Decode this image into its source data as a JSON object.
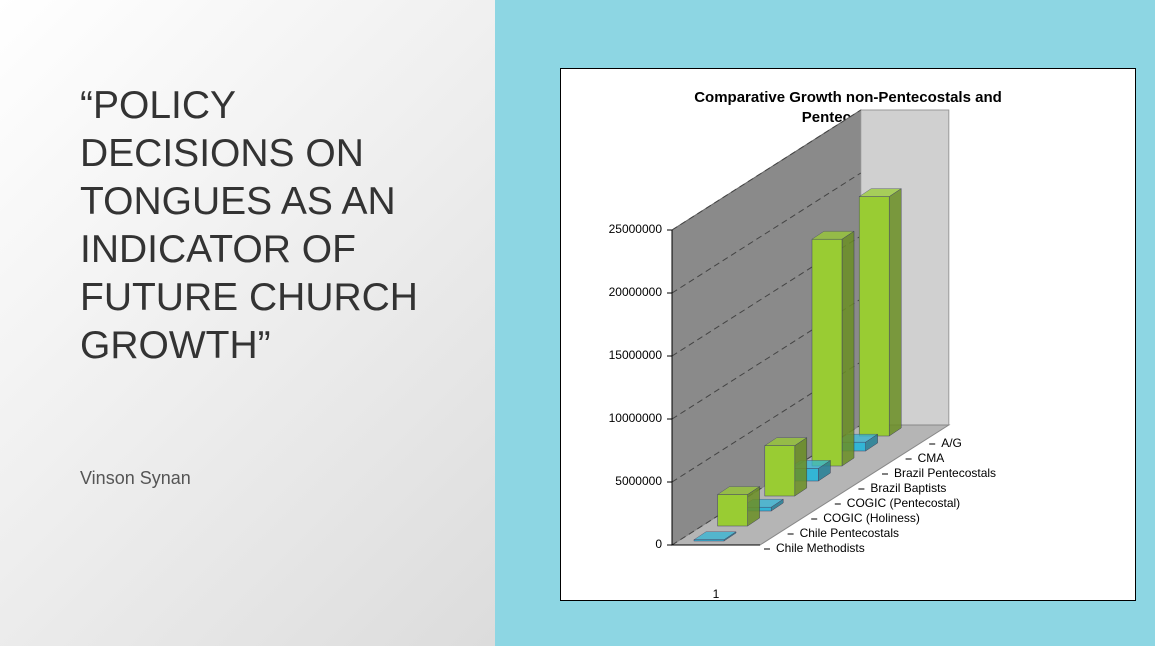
{
  "slide": {
    "title": "“POLICY DECISIONS ON TONGUES AS AN INDICATOR OF FUTURE CHURCH GROWTH”",
    "subtitle": "Vinson Synan"
  },
  "chart_data": {
    "type": "bar3d",
    "title": "Comparative Growth non-Pentecostals and Pentecostals",
    "categories": [
      "1"
    ],
    "series": [
      {
        "name": "Chile Methodists",
        "color": "#33b5d6",
        "values": [
          100000
        ]
      },
      {
        "name": "Chile Pentecostals",
        "color": "#99cc33",
        "values": [
          2500000
        ]
      },
      {
        "name": "COGIC (Holiness)",
        "color": "#33b5d6",
        "values": [
          300000
        ]
      },
      {
        "name": "COGIC (Pentecostal)",
        "color": "#99cc33",
        "values": [
          4000000
        ]
      },
      {
        "name": "Brazil Baptists",
        "color": "#33b5d6",
        "values": [
          1000000
        ]
      },
      {
        "name": "Brazil Pentecostals",
        "color": "#99cc33",
        "values": [
          18000000
        ]
      },
      {
        "name": "CMA",
        "color": "#33b5d6",
        "values": [
          700000
        ]
      },
      {
        "name": "A/G",
        "color": "#99cc33",
        "values": [
          19000000
        ]
      }
    ],
    "ylim": [
      0,
      25000000
    ],
    "yticks": [
      0,
      5000000,
      10000000,
      15000000,
      20000000,
      25000000
    ],
    "grid": true
  }
}
